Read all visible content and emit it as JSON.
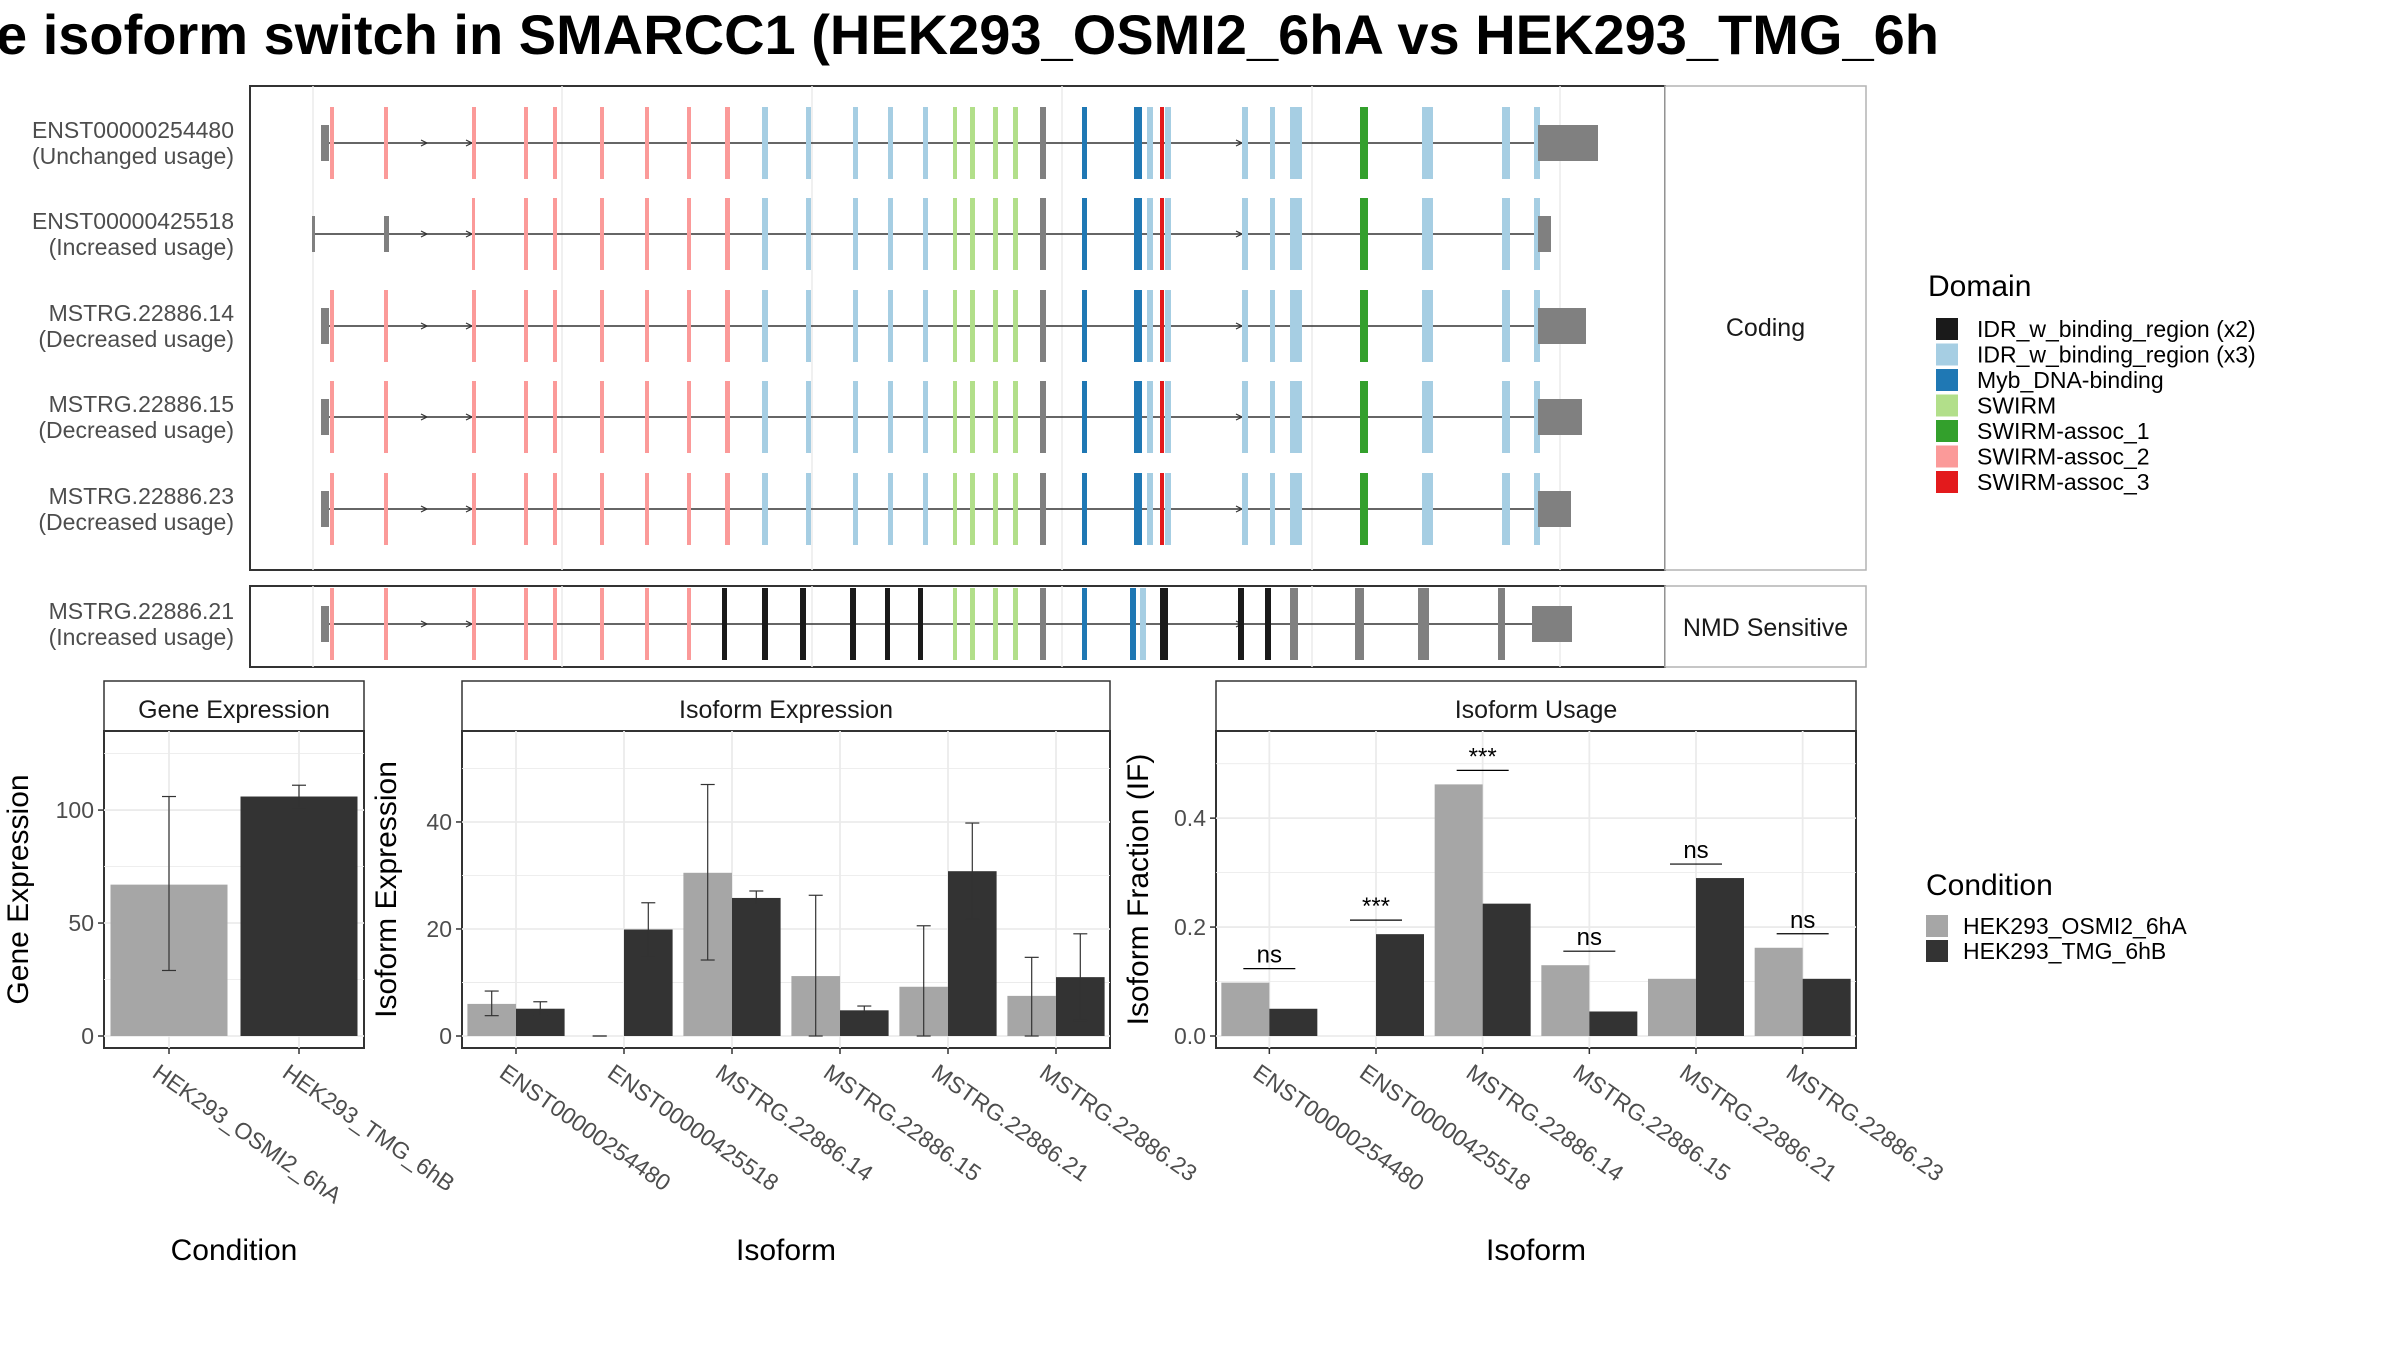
{
  "title": "e isoform switch in SMARCC1 (HEK293_OSMI2_6hA vs HEK293_TMG_6h",
  "facets": {
    "coding": "Coding",
    "nmd": "NMD Sensitive"
  },
  "colors": {
    "IDR_w_binding_region (x2)": "#1a1a1a",
    "IDR_w_binding_region (x3)": "#a6cee3",
    "Myb_DNA-binding": "#1f78b4",
    "SWIRM": "#b2df8a",
    "SWIRM-assoc_1": "#33a02c",
    "SWIRM-assoc_2": "#fb9a99",
    "SWIRM-assoc_3": "#e31a1c",
    "none": "#808080",
    "cond_a": "#a6a6a6",
    "cond_b": "#333333"
  },
  "legend_domain": {
    "title": "Domain",
    "items": [
      "IDR_w_binding_region (x2)",
      "IDR_w_binding_region (x3)",
      "Myb_DNA-binding",
      "SWIRM",
      "SWIRM-assoc_1",
      "SWIRM-assoc_2",
      "SWIRM-assoc_3"
    ]
  },
  "legend_condition": {
    "title": "Condition",
    "items": [
      "HEK293_OSMI2_6hA",
      "HEK293_TMG_6hB"
    ]
  },
  "chart_data": [
    {
      "type": "transcript-structure",
      "transcripts": [
        {
          "name": "ENST00000254480",
          "usage": "(Unchanged usage)",
          "facet": "Coding"
        },
        {
          "name": "ENST00000425518",
          "usage": "(Increased usage)",
          "facet": "Coding"
        },
        {
          "name": "MSTRG.22886.14",
          "usage": "(Decreased usage)",
          "facet": "Coding"
        },
        {
          "name": "MSTRG.22886.15",
          "usage": "(Decreased usage)",
          "facet": "Coding"
        },
        {
          "name": "MSTRG.22886.23",
          "usage": "(Decreased usage)",
          "facet": "Coding"
        },
        {
          "name": "MSTRG.22886.21",
          "usage": "(Increased usage)",
          "facet": "NMD Sensitive"
        }
      ]
    },
    {
      "type": "bar",
      "title": "Gene Expression",
      "xlabel": "Condition",
      "ylabel": "Gene Expression",
      "categories": [
        "HEK293_OSMI2_6hA",
        "HEK293_TMG_6hB"
      ],
      "values": [
        67,
        106
      ],
      "error_low": [
        29,
        101
      ],
      "error_high": [
        106,
        111
      ],
      "ylim": [
        0,
        135
      ],
      "yticks": [
        0,
        50,
        100
      ]
    },
    {
      "type": "bar",
      "title": "Isoform Expression",
      "xlabel": "Isoform",
      "ylabel": "Isoform Expression",
      "categories": [
        "ENST00000254480",
        "ENST00000425518",
        "MSTRG.22886.14",
        "MSTRG.22886.15",
        "MSTRG.22886.21",
        "MSTRG.22886.23"
      ],
      "series": [
        {
          "name": "HEK293_OSMI2_6hA",
          "values": [
            6,
            0,
            30.5,
            11.2,
            9.2,
            7.5
          ],
          "error_low": [
            3.8,
            0,
            14.2,
            0,
            0,
            0
          ],
          "error_high": [
            8.4,
            0,
            47,
            26.3,
            20.6,
            14.7
          ]
        },
        {
          "name": "HEK293_TMG_6hB",
          "values": [
            5.1,
            19.9,
            25.8,
            4.8,
            30.8,
            11
          ],
          "error_low": [
            3.8,
            14.7,
            24.5,
            4,
            21.8,
            2.9
          ],
          "error_high": [
            6.4,
            24.9,
            27.1,
            5.6,
            39.8,
            19.1
          ]
        }
      ],
      "ylim": [
        0,
        57
      ],
      "yticks": [
        0,
        20,
        40
      ]
    },
    {
      "type": "bar",
      "title": "Isoform Usage",
      "xlabel": "Isoform",
      "ylabel": "Isoform Fraction (IF)",
      "categories": [
        "ENST00000254480",
        "ENST00000425518",
        "MSTRG.22886.14",
        "MSTRG.22886.15",
        "MSTRG.22886.21",
        "MSTRG.22886.23"
      ],
      "series": [
        {
          "name": "HEK293_OSMI2_6hA",
          "values": [
            0.098,
            0.0,
            0.462,
            0.13,
            0.105,
            0.162
          ]
        },
        {
          "name": "HEK293_TMG_6hB",
          "values": [
            0.05,
            0.187,
            0.243,
            0.045,
            0.29,
            0.105
          ]
        }
      ],
      "significance": [
        "ns",
        "***",
        "***",
        "ns",
        "ns",
        "ns"
      ],
      "ylim": [
        0,
        0.56
      ],
      "yticks": [
        0.0,
        0.2,
        0.4
      ],
      "ytick_labels": [
        "0.0",
        "0.2",
        "0.4"
      ]
    }
  ]
}
